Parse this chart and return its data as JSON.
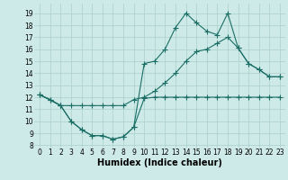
{
  "xlabel": "Humidex (Indice chaleur)",
  "bg_color": "#ceeae8",
  "grid_color": "#aacfcc",
  "line_color": "#1a6e65",
  "xlim": [
    -0.5,
    23.5
  ],
  "ylim": [
    7.8,
    19.8
  ],
  "xticks": [
    0,
    1,
    2,
    3,
    4,
    5,
    6,
    7,
    8,
    9,
    10,
    11,
    12,
    13,
    14,
    15,
    16,
    17,
    18,
    19,
    20,
    21,
    22,
    23
  ],
  "yticks": [
    8,
    9,
    10,
    11,
    12,
    13,
    14,
    15,
    16,
    17,
    18,
    19
  ],
  "line1_x": [
    0,
    1,
    2,
    3,
    4,
    5,
    6,
    7,
    8,
    9,
    10,
    11,
    12,
    13,
    14,
    15,
    16,
    17,
    18,
    19,
    20,
    21,
    22,
    23
  ],
  "line1_y": [
    12.2,
    11.8,
    11.3,
    10.0,
    9.3,
    8.8,
    8.8,
    8.5,
    8.7,
    9.5,
    11.9,
    12.0,
    12.0,
    12.0,
    12.0,
    12.0,
    12.0,
    12.0,
    12.0,
    12.0,
    12.0,
    12.0,
    12.0,
    12.0
  ],
  "line2_x": [
    0,
    1,
    2,
    3,
    4,
    5,
    6,
    7,
    8,
    9,
    10,
    11,
    12,
    13,
    14,
    15,
    16,
    17,
    18,
    19,
    20,
    21,
    22,
    23
  ],
  "line2_y": [
    12.2,
    11.8,
    11.3,
    11.3,
    11.3,
    11.3,
    11.3,
    11.3,
    11.3,
    11.8,
    12.0,
    12.5,
    13.2,
    14.0,
    15.0,
    15.8,
    16.0,
    16.5,
    17.0,
    16.1,
    14.8,
    14.3,
    13.7,
    13.7
  ],
  "line3_x": [
    0,
    2,
    3,
    4,
    5,
    6,
    7,
    8,
    9,
    10,
    11,
    12,
    13,
    14,
    15,
    16,
    17,
    18,
    19,
    20,
    21,
    22,
    23
  ],
  "line3_y": [
    12.2,
    11.3,
    10.0,
    9.3,
    8.8,
    8.8,
    8.5,
    8.7,
    9.5,
    14.8,
    15.0,
    16.0,
    17.8,
    19.0,
    18.2,
    17.5,
    17.2,
    19.0,
    16.1,
    14.8,
    14.3,
    13.7,
    13.7
  ],
  "marker_size": 2.0,
  "linewidth": 0.8,
  "font_size_label": 7.0,
  "font_size_tick": 5.5
}
